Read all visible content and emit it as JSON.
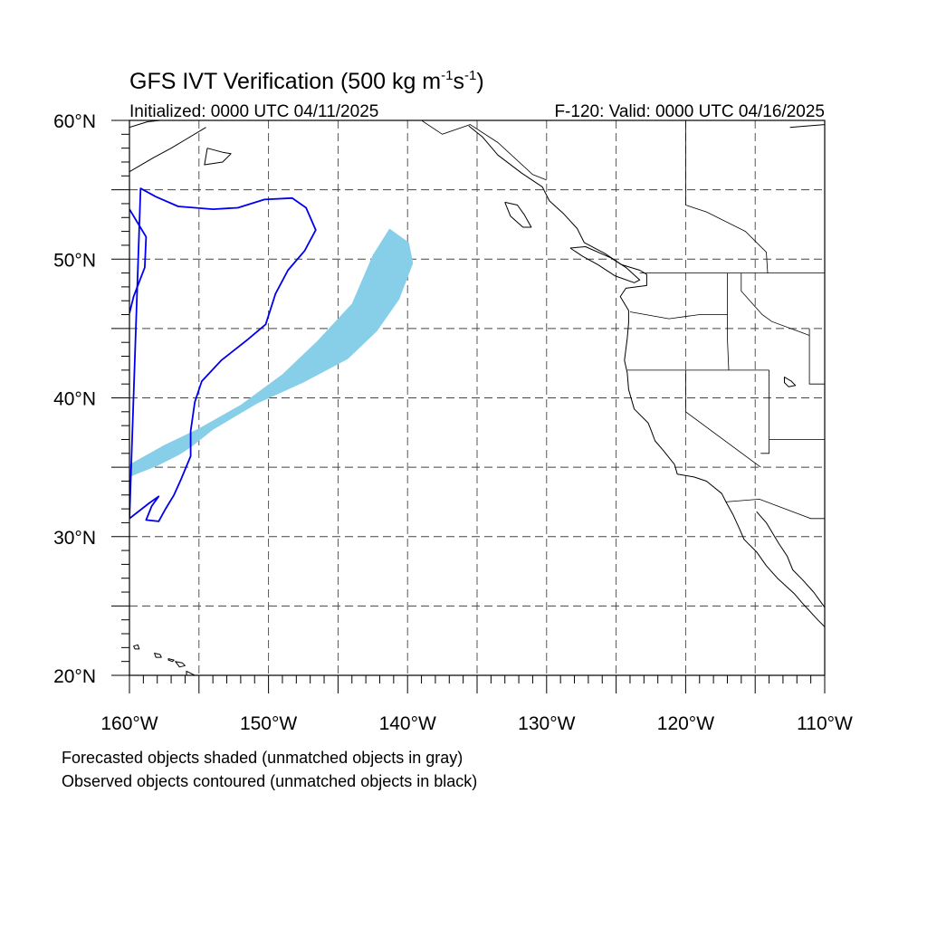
{
  "title": {
    "main": "GFS IVT Verification (500 kg m",
    "sup1": "-1",
    "mid": "s",
    "sup2": "-1",
    "end": ")"
  },
  "subtitle_left": "Initialized: 0000 UTC 04/11/2025",
  "subtitle_right": "F-120: Valid: 0000 UTC 04/16/2025",
  "map": {
    "lon_range": [
      -160,
      -110
    ],
    "lat_range": [
      20,
      60
    ],
    "gridlines": "dashed",
    "lon_ticks": [
      {
        "lon": -160,
        "label": "160°W"
      },
      {
        "lon": -150,
        "label": "150°W"
      },
      {
        "lon": -140,
        "label": "140°W"
      },
      {
        "lon": -130,
        "label": "130°W"
      },
      {
        "lon": -120,
        "label": "120°W"
      },
      {
        "lon": -110,
        "label": "110°W"
      }
    ],
    "lat_ticks": [
      {
        "lat": 60,
        "label": "60°N"
      },
      {
        "lat": 50,
        "label": "50°N"
      },
      {
        "lat": 40,
        "label": "40°N"
      },
      {
        "lat": 30,
        "label": "30°N"
      },
      {
        "lat": 20,
        "label": "20°N"
      }
    ],
    "forecast_color": "#87cfe8",
    "observed_color": "#0000ee",
    "coast_color": "#000000"
  },
  "forecast_object": {
    "name": "Forecasted IVT object",
    "polygon": [
      [
        -160,
        35.2
      ],
      [
        -157.5,
        36.6
      ],
      [
        -155,
        37.8
      ],
      [
        -152,
        39.5
      ],
      [
        -149,
        41.7
      ],
      [
        -146.5,
        44.1
      ],
      [
        -144,
        46.8
      ],
      [
        -142.5,
        50.3
      ],
      [
        -141.3,
        52.2
      ],
      [
        -139.9,
        51.2
      ],
      [
        -139.6,
        49.7
      ],
      [
        -140.6,
        47.1
      ],
      [
        -142.2,
        44.8
      ],
      [
        -144.3,
        42.8
      ],
      [
        -147.5,
        41.1
      ],
      [
        -150.8,
        39.6
      ],
      [
        -154,
        37.7
      ],
      [
        -155.5,
        36.5
      ],
      [
        -156.4,
        35.9
      ],
      [
        -158,
        35.1
      ],
      [
        -160,
        34.3
      ]
    ]
  },
  "observed_object": {
    "name": "Observed IVT object",
    "polyline": [
      [
        -160,
        53.6
      ],
      [
        -158.8,
        51.6
      ],
      [
        -158.9,
        49.4
      ],
      [
        -159.7,
        47.3
      ],
      [
        -160,
        46.1
      ]
    ],
    "polygon": [
      [
        -159.2,
        55.1
      ],
      [
        -158.1,
        54.5
      ],
      [
        -156.5,
        53.8
      ],
      [
        -154,
        53.6
      ],
      [
        -152.2,
        53.7
      ],
      [
        -150.3,
        54.3
      ],
      [
        -148.3,
        54.4
      ],
      [
        -147.3,
        53.7
      ],
      [
        -146.6,
        52.1
      ],
      [
        -147.4,
        50.6
      ],
      [
        -148.6,
        49.2
      ],
      [
        -149.5,
        47.5
      ],
      [
        -150.2,
        45.3
      ],
      [
        -151.5,
        44.2
      ],
      [
        -153.4,
        42.7
      ],
      [
        -154.8,
        41.2
      ],
      [
        -155.3,
        39.7
      ],
      [
        -155.6,
        37.6
      ],
      [
        -155.6,
        35.8
      ],
      [
        -156.3,
        34.1
      ],
      [
        -156.8,
        33.0
      ],
      [
        -157.4,
        32.0
      ],
      [
        -157.9,
        31.1
      ],
      [
        -158.8,
        31.2
      ],
      [
        -158.4,
        32.2
      ],
      [
        -157.9,
        32.9
      ],
      [
        -158.6,
        32.4
      ],
      [
        -160,
        31.3
      ]
    ]
  },
  "coast": {
    "west_coast": [
      [
        -135.6,
        59.6
      ],
      [
        -134.6,
        58.8
      ],
      [
        -133.5,
        57.5
      ],
      [
        -131.8,
        56.2
      ],
      [
        -130.3,
        55.2
      ],
      [
        -129.8,
        54.2
      ],
      [
        -128.8,
        53.3
      ],
      [
        -127.8,
        52.2
      ],
      [
        -127.3,
        51.2
      ],
      [
        -125.8,
        50.4
      ],
      [
        -124.6,
        49.6
      ],
      [
        -123.3,
        49.2
      ],
      [
        -122.8,
        48.9
      ],
      [
        -122.8,
        48.1
      ],
      [
        -124.3,
        47.9
      ],
      [
        -124.7,
        47.3
      ],
      [
        -124.1,
        46.3
      ],
      [
        -124.1,
        45.4
      ],
      [
        -124.2,
        44.3
      ],
      [
        -124.4,
        42.7
      ],
      [
        -124.2,
        41.8
      ],
      [
        -124.1,
        40.6
      ],
      [
        -123.7,
        39.2
      ],
      [
        -122.7,
        38.2
      ],
      [
        -122.5,
        37.7
      ],
      [
        -122.2,
        36.9
      ],
      [
        -121.6,
        36.2
      ],
      [
        -120.8,
        35.2
      ],
      [
        -120.6,
        34.5
      ],
      [
        -119.4,
        34.3
      ],
      [
        -118.5,
        34.0
      ],
      [
        -117.4,
        33.1
      ],
      [
        -117.1,
        32.5
      ],
      [
        -116.6,
        31.6
      ],
      [
        -116.1,
        30.5
      ],
      [
        -115.8,
        29.8
      ],
      [
        -114.9,
        28.9
      ],
      [
        -114.2,
        27.9
      ],
      [
        -113.4,
        27.0
      ],
      [
        -112.2,
        25.9
      ],
      [
        -111.6,
        25.2
      ],
      [
        -110.5,
        24.0
      ],
      [
        -110.0,
        23.5
      ]
    ],
    "gulf_coast": [
      [
        -114.9,
        31.8
      ],
      [
        -114.2,
        31.0
      ],
      [
        -113.3,
        29.5
      ],
      [
        -112.7,
        28.6
      ],
      [
        -112.3,
        27.6
      ],
      [
        -111.6,
        26.9
      ],
      [
        -110.8,
        26.0
      ],
      [
        -110.0,
        24.9
      ]
    ],
    "alaska_peninsula": [
      [
        -160,
        56.3
      ],
      [
        -158.3,
        57.3
      ],
      [
        -157.0,
        58.0
      ],
      [
        -156.0,
        58.6
      ],
      [
        -154.5,
        59.5
      ]
    ],
    "alaska_gulf_north": [
      [
        -160,
        59.5
      ],
      [
        -158.7,
        59.9
      ],
      [
        -157.8,
        60.0
      ]
    ],
    "kodiak": [
      [
        -154.4,
        58.0
      ],
      [
        -153.3,
        57.7
      ],
      [
        -152.7,
        57.6
      ],
      [
        -153.3,
        57.0
      ],
      [
        -154.6,
        56.8
      ],
      [
        -154.4,
        58.0
      ]
    ],
    "vancouver_island": [
      [
        -128.3,
        50.8
      ],
      [
        -127.4,
        50.2
      ],
      [
        -126.3,
        49.6
      ],
      [
        -125.1,
        48.8
      ],
      [
        -123.7,
        48.3
      ],
      [
        -123.3,
        48.5
      ],
      [
        -124.3,
        49.4
      ],
      [
        -125.4,
        50.1
      ],
      [
        -127.2,
        50.9
      ],
      [
        -128.3,
        50.8
      ]
    ],
    "haida_gwaii": [
      [
        -133.0,
        54.1
      ],
      [
        -132.1,
        53.9
      ],
      [
        -131.6,
        53.2
      ],
      [
        -131.1,
        52.3
      ],
      [
        -131.7,
        52.3
      ],
      [
        -132.6,
        53.1
      ],
      [
        -133.0,
        54.1
      ]
    ],
    "hudson_bay_edge": [
      [
        -112.5,
        59.5
      ],
      [
        -110,
        59.7
      ]
    ],
    "hawaii_islands": [
      [
        [
          -159.7,
          22.1
        ],
        [
          -159.4,
          22.2
        ],
        [
          -159.3,
          21.9
        ],
        [
          -159.6,
          21.9
        ],
        [
          -159.7,
          22.1
        ]
      ],
      [
        [
          -158.2,
          21.6
        ],
        [
          -157.8,
          21.5
        ],
        [
          -157.7,
          21.3
        ],
        [
          -158.1,
          21.3
        ],
        [
          -158.2,
          21.6
        ]
      ],
      [
        [
          -157.2,
          21.2
        ],
        [
          -156.8,
          21.1
        ],
        [
          -156.9,
          21.0
        ],
        [
          -157.2,
          21.1
        ]
      ],
      [
        [
          -156.7,
          21.0
        ],
        [
          -156.2,
          20.9
        ],
        [
          -156.0,
          20.7
        ],
        [
          -156.4,
          20.6
        ],
        [
          -156.7,
          21.0
        ]
      ],
      [
        [
          -155.9,
          20.3
        ],
        [
          -155.1,
          19.9
        ],
        [
          -154.8,
          19.5
        ],
        [
          -155.5,
          19.0
        ],
        [
          -155.9,
          19.5
        ],
        [
          -155.9,
          20.3
        ]
      ]
    ]
  },
  "borders": [
    [
      [
        -123.3,
        49.0
      ],
      [
        -110,
        49.0
      ]
    ],
    [
      [
        -124.0,
        46.2
      ],
      [
        -121.2,
        45.7
      ],
      [
        -119.0,
        46.0
      ],
      [
        -117.0,
        46.0
      ],
      [
        -117.0,
        44.3
      ],
      [
        -116.9,
        42.0
      ]
    ],
    [
      [
        -124.2,
        42.0
      ],
      [
        -114,
        42.0
      ]
    ],
    [
      [
        -117.0,
        49.0
      ],
      [
        -117.0,
        46.0
      ]
    ],
    [
      [
        -116.0,
        49.0
      ],
      [
        -116.0,
        47.7
      ],
      [
        -114.5,
        46.0
      ],
      [
        -113.8,
        45.5
      ],
      [
        -111.1,
        44.5
      ]
    ],
    [
      [
        -120,
        42.0
      ],
      [
        -120,
        39.0
      ],
      [
        -114.6,
        35.0
      ]
    ],
    [
      [
        -114.0,
        42.0
      ],
      [
        -114.0,
        36.0
      ],
      [
        -114.6,
        36.0
      ]
    ],
    [
      [
        -117.1,
        32.5
      ],
      [
        -114.7,
        32.7
      ],
      [
        -111.0,
        31.3
      ],
      [
        -110,
        31.3
      ]
    ],
    [
      [
        -114.0,
        37.0
      ],
      [
        -110,
        37.0
      ]
    ],
    [
      [
        -111.1,
        45.0
      ],
      [
        -111.1,
        41.0
      ],
      [
        -110,
        41.0
      ]
    ],
    [
      [
        -139.0,
        60.0
      ],
      [
        -137.5,
        59.0
      ],
      [
        -135.5,
        59.7
      ],
      [
        -133.5,
        58.4
      ],
      [
        -131.0,
        56.1
      ],
      [
        -130.0,
        55.7
      ]
    ],
    [
      [
        -120,
        60
      ],
      [
        -120,
        53.9
      ],
      [
        -118.5,
        53.4
      ],
      [
        -115.7,
        52.0
      ],
      [
        -114.2,
        50.5
      ],
      [
        -114.1,
        49.0
      ]
    ]
  ],
  "lakes": [
    [
      [
        -112.9,
        41.5
      ],
      [
        -112.4,
        41.2
      ],
      [
        -112.1,
        40.9
      ],
      [
        -112.6,
        40.8
      ],
      [
        -112.9,
        41.1
      ],
      [
        -112.9,
        41.5
      ]
    ]
  ],
  "footer": {
    "line1": "Forecasted objects shaded (unmatched objects in gray)",
    "line2": "Observed objects contoured (unmatched objects in black)"
  }
}
